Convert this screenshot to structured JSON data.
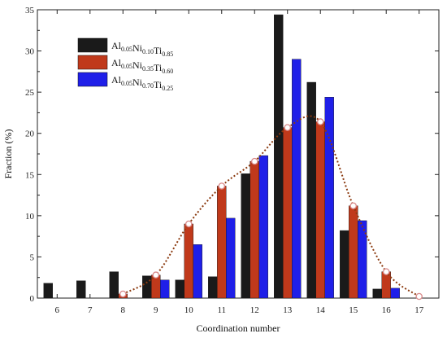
{
  "chart_data": {
    "type": "bar",
    "xlabel": "Coordination number",
    "ylabel": "Fraction (%)",
    "ylim": [
      0,
      35
    ],
    "yticks": [
      0,
      5,
      10,
      15,
      20,
      25,
      30,
      35
    ],
    "categories": [
      "6",
      "7",
      "8",
      "9",
      "10",
      "11",
      "12",
      "13",
      "14",
      "15",
      "16",
      "17"
    ],
    "grid": false,
    "legend_position": "top-left",
    "series": [
      {
        "name": "Al0.05Ni0.10Ti0.85",
        "legend_parts": [
          [
            "Al",
            "0.05"
          ],
          [
            "Ni",
            "0.10"
          ],
          [
            "Ti",
            "0.85"
          ]
        ],
        "color": "#1a1a1a",
        "values": [
          1.8,
          2.1,
          3.2,
          2.7,
          2.2,
          2.6,
          15.1,
          34.4,
          26.2,
          8.2,
          1.1,
          0
        ]
      },
      {
        "name": "Al0.05Ni0.35Ti0.60",
        "legend_parts": [
          [
            "Al",
            "0.05"
          ],
          [
            "Ni",
            "0.35"
          ],
          [
            "Ti",
            "0.60"
          ]
        ],
        "color": "#c0391b",
        "values": [
          0,
          0,
          0.5,
          2.8,
          9.0,
          13.6,
          16.6,
          20.7,
          21.4,
          11.2,
          3.2,
          0
        ]
      },
      {
        "name": "Al0.05Ni0.70Ti0.25",
        "legend_parts": [
          [
            "Al",
            "0.05"
          ],
          [
            "Ni",
            "0.70"
          ],
          [
            "Ti",
            "0.25"
          ]
        ],
        "color": "#1f1fe8",
        "values": [
          0,
          0,
          0,
          2.2,
          6.5,
          9.7,
          17.3,
          29.0,
          24.4,
          9.4,
          1.2,
          0
        ]
      }
    ],
    "fit_curve": {
      "color": "#8b3a0f",
      "points": [
        {
          "x": 8,
          "y": 0.5
        },
        {
          "x": 9,
          "y": 2.8
        },
        {
          "x": 10,
          "y": 9.0
        },
        {
          "x": 11,
          "y": 13.6
        },
        {
          "x": 12,
          "y": 16.6
        },
        {
          "x": 13,
          "y": 20.7
        },
        {
          "x": 14,
          "y": 21.4
        },
        {
          "x": 15,
          "y": 11.2
        },
        {
          "x": 16,
          "y": 3.2
        },
        {
          "x": 17,
          "y": 0.2
        }
      ]
    }
  }
}
